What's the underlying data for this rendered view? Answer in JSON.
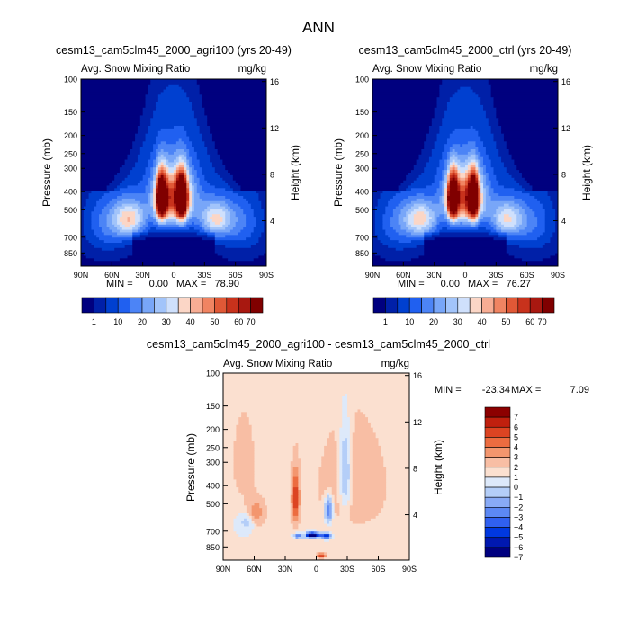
{
  "page_title": "ANN",
  "colors": {
    "abs_levels": [
      "#00007f",
      "#0020a8",
      "#0040d0",
      "#2060f0",
      "#4c84f6",
      "#78a6f8",
      "#a2c4fa",
      "#cfe0fc",
      "#fbd6c6",
      "#f7ad94",
      "#f08462",
      "#e05836",
      "#c8321c",
      "#a81810",
      "#800000"
    ],
    "diff_levels": [
      "#00007f",
      "#0018b0",
      "#0038e0",
      "#3060f0",
      "#5c88f4",
      "#88aaf6",
      "#b4cef8",
      "#dde9fa",
      "#fbe0d0",
      "#f8bea4",
      "#f3966e",
      "#ec6c40",
      "#dc4422",
      "#c0200e",
      "#8c0000"
    ]
  },
  "chart_data": [
    {
      "type": "heatmap",
      "subtitle": "cesm13_cam5clm45_2000_agri100 (yrs 20-49)",
      "title_left": "Avg. Snow Mixing Ratio",
      "title_right": "mg/kg",
      "ylabel": "Pressure (mb)",
      "ylabel_right": "Height (km)",
      "x_ticks": [
        "90N",
        "60N",
        "30N",
        "0",
        "30S",
        "60S",
        "90S"
      ],
      "y_ticks": [
        "100",
        "150",
        "200",
        "250",
        "300",
        "400",
        "500",
        "700",
        "850"
      ],
      "y_ticks_right": [
        "16",
        "12",
        "8",
        "4"
      ],
      "min_label": "MIN =",
      "min_value": "0.00",
      "max_label": "MAX =",
      "max_value": "78.90",
      "colorbar_labels": [
        "1",
        "10",
        "20",
        "30",
        "40",
        "50",
        "60",
        "70"
      ],
      "field": "abs"
    },
    {
      "type": "heatmap",
      "subtitle": "cesm13_cam5clm45_2000_ctrl (yrs 20-49)",
      "title_left": "Avg. Snow Mixing Ratio",
      "title_right": "mg/kg",
      "ylabel": "Pressure (mb)",
      "ylabel_right": "Height (km)",
      "x_ticks": [
        "90N",
        "60N",
        "30N",
        "0",
        "30S",
        "60S",
        "90S"
      ],
      "y_ticks": [
        "100",
        "150",
        "200",
        "250",
        "300",
        "400",
        "500",
        "700",
        "850"
      ],
      "y_ticks_right": [
        "16",
        "12",
        "8",
        "4"
      ],
      "min_label": "MIN =",
      "min_value": "0.00",
      "max_label": "MAX =",
      "max_value": "76.27",
      "colorbar_labels": [
        "1",
        "10",
        "20",
        "30",
        "40",
        "50",
        "60",
        "70"
      ],
      "field": "abs"
    },
    {
      "type": "heatmap",
      "subtitle": "cesm13_cam5clm45_2000_agri100 - cesm13_cam5clm45_2000_ctrl",
      "title_left": "Avg. Snow Mixing Ratio",
      "title_right": "mg/kg",
      "ylabel": "Pressure (mb)",
      "ylabel_right": "Height (km)",
      "x_ticks": [
        "90N",
        "60N",
        "30N",
        "0",
        "30S",
        "60S",
        "90S"
      ],
      "y_ticks": [
        "100",
        "150",
        "200",
        "250",
        "300",
        "400",
        "500",
        "700",
        "850"
      ],
      "y_ticks_right": [
        "16",
        "12",
        "8",
        "4"
      ],
      "min_label": "MIN =",
      "min_value": "-23.34",
      "max_label": "MAX =",
      "max_value": "7.09",
      "colorbar_labels": [
        "7",
        "6",
        "5",
        "4",
        "3",
        "2",
        "1",
        "0",
        "−1",
        "−2",
        "−3",
        "−4",
        "−5",
        "−6",
        "−7"
      ],
      "field": "diff"
    }
  ]
}
